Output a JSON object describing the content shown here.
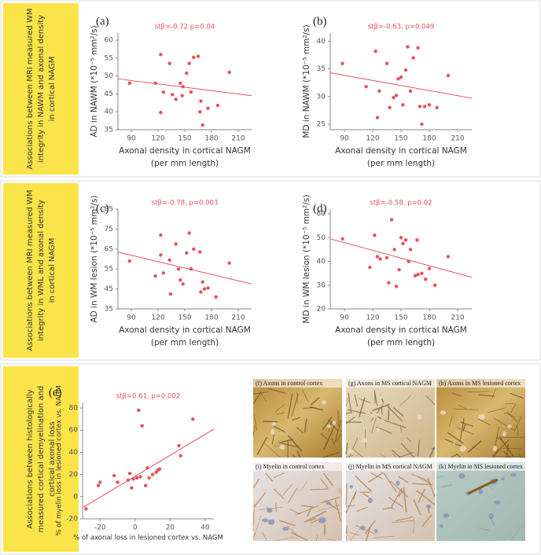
{
  "panels": [
    {
      "title": [
        "Associations between MRI measured WM",
        "integrity in NAWM and axonal density",
        "in cortical NAGM"
      ]
    },
    {
      "title": [
        "Associations between MRI measured WM",
        "integrity in WML and axonal density",
        "in cortical NAGM"
      ]
    },
    {
      "title": [
        "Associations between histologically",
        "measured cortical demyelination and",
        "cortical axonal loss"
      ]
    }
  ],
  "chart_data": [
    {
      "type": "scatter",
      "label": "(a)",
      "annotation": "stβ=-0.72 p=0.04",
      "color": "#e8505b",
      "y_label": "AD in NAWM (*10⁻⁵ mm²/s)",
      "x_label": [
        "Axonal density in cortical NAGM",
        "(per mm length)"
      ],
      "xlim": [
        75,
        225
      ],
      "xticks": [
        90,
        120,
        150,
        180,
        210
      ],
      "ylim": [
        35,
        62
      ],
      "yticks": [
        35,
        40,
        45,
        50,
        55,
        60
      ],
      "x": [
        88,
        117,
        123,
        123,
        126,
        133,
        136,
        140,
        145,
        147,
        148,
        152,
        155,
        157,
        160,
        165,
        167,
        168,
        170,
        176,
        187,
        200
      ],
      "y": [
        48,
        48,
        56,
        39.8,
        45.5,
        53.5,
        44.8,
        43.5,
        48,
        44.5,
        47,
        50.8,
        53.5,
        45.5,
        55.2,
        55.5,
        40,
        43,
        36.3,
        41,
        41.8,
        51
      ],
      "trend": [
        49.2,
        44.5
      ]
    },
    {
      "type": "scatter",
      "label": "(b)",
      "annotation": "stβ=-0.63, p=0.049",
      "color": "#e8505b",
      "y_label": "MD in NAWM (*10⁻⁵ mm²/s)",
      "x_label": [
        "Axonal density in cortical NAGM",
        "(per mm length)"
      ],
      "xlim": [
        75,
        225
      ],
      "xticks": [
        90,
        120,
        150,
        180,
        210
      ],
      "ylim": [
        24,
        41.5
      ],
      "yticks": [
        25,
        30,
        35,
        40
      ],
      "x": [
        88,
        113,
        123,
        125,
        127,
        135,
        138,
        142,
        145,
        147,
        150,
        152,
        155,
        157,
        160,
        163,
        168,
        170,
        172,
        175,
        180,
        188,
        200
      ],
      "y": [
        36,
        31.8,
        38.2,
        26.2,
        31,
        36,
        28,
        29.8,
        30.2,
        33.2,
        33.5,
        28.5,
        34.8,
        39,
        31,
        37,
        38.8,
        28.2,
        25,
        28.2,
        28.5,
        28,
        33.8
      ],
      "trend": [
        34.3,
        29.7
      ]
    },
    {
      "type": "scatter",
      "label": "(c)",
      "annotation": "stβ=-0.78, p=0.003",
      "color": "#e8505b",
      "y_label": "AD in WM lesion (*10⁻⁵ mm²/s)",
      "x_label": [
        "Axonal density in cortical NAGM",
        "(per mm length)"
      ],
      "xlim": [
        75,
        225
      ],
      "xticks": [
        90,
        120,
        150,
        180,
        210
      ],
      "ylim": [
        35,
        85
      ],
      "yticks": [
        35,
        45,
        55,
        65,
        75,
        85
      ],
      "x": [
        88,
        117,
        123,
        123,
        126,
        133,
        134,
        140,
        143,
        145,
        148,
        152,
        155,
        157,
        160,
        167,
        168,
        170,
        172,
        176,
        185,
        200
      ],
      "y": [
        59,
        51.5,
        72,
        62,
        53,
        59.5,
        42.5,
        67.5,
        55,
        49.5,
        47.5,
        63,
        73,
        55,
        65,
        63.5,
        43.5,
        48.5,
        45,
        45.5,
        41,
        58
      ],
      "trend": [
        63.5,
        47.5
      ]
    },
    {
      "type": "scatter",
      "label": "(d)",
      "annotation": "stβ=-0.58, p=0.02",
      "color": "#e8505b",
      "y_label": "MD in WM lesion (*10⁻⁵ mm²/s)",
      "x_label": [
        "Axonal density in cortical NAGM",
        "(per mm length)"
      ],
      "xlim": [
        75,
        225
      ],
      "xticks": [
        90,
        120,
        150,
        180,
        210
      ],
      "ylim": [
        20,
        62
      ],
      "yticks": [
        20,
        30,
        40,
        50,
        60
      ],
      "x": [
        88,
        117,
        122,
        125,
        128,
        135,
        137,
        140,
        143,
        145,
        148,
        150,
        152,
        155,
        158,
        160,
        165,
        167,
        168,
        172,
        176,
        180,
        186,
        200
      ],
      "y": [
        49.5,
        37.5,
        51,
        42,
        41,
        41.5,
        31,
        57.5,
        45,
        29.5,
        36.5,
        50,
        47.5,
        49,
        40,
        45,
        34,
        49,
        34.5,
        35,
        32.5,
        37,
        30,
        42
      ],
      "trend": [
        49.5,
        33.3
      ]
    },
    {
      "type": "scatter",
      "label": "(e)",
      "annotation": "stβ=0.61, p=0.002",
      "color": "#e8505b",
      "y_label": "% of myelin loss in lesioned cortex vs. NAGM",
      "x_label": [
        "% of axonal loss in lesioned cortex vs. NAGM"
      ],
      "xlim": [
        -30,
        45
      ],
      "xticks": [
        -20,
        0,
        20,
        40
      ],
      "ylim": [
        -20,
        85
      ],
      "yticks": [
        -20,
        0,
        20,
        40,
        60,
        80
      ],
      "x": [
        -28,
        -21,
        -20,
        -12,
        -10,
        -4,
        -3,
        -2,
        -1,
        1,
        2,
        3,
        4,
        6,
        7,
        8,
        10,
        12,
        13,
        14,
        25,
        26,
        33
      ],
      "y": [
        -11,
        10,
        13,
        19,
        13,
        15,
        21,
        8,
        16,
        17,
        78,
        18,
        64,
        10,
        26,
        17,
        20,
        22,
        24,
        25,
        46,
        37,
        70
      ],
      "trend": [
        -10,
        61
      ]
    }
  ],
  "micrographs": [
    "(f) Axons in control cortex",
    "(g) Axons in MS cortical NAGM",
    "(h) Axons in MS lesioned cortex",
    "(i) Myelin in control cortex",
    "(j) Myelin in MS cortical NAGM",
    "(k) Myelin in MS lesioned cortex"
  ]
}
